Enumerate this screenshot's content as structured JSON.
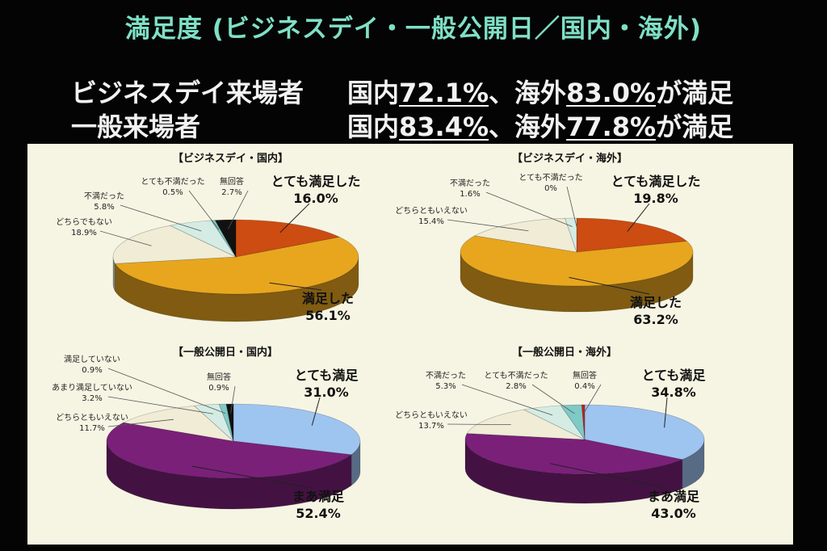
{
  "title": "満足度 (ビジネスデイ・一般公開日／国内・海外)",
  "summary": [
    {
      "label": "ビジネスデイ来場者",
      "d_prefix": "国内",
      "d_value": "72.1%",
      "sep": "、",
      "o_prefix": "海外",
      "o_value": "83.0%",
      "suffix": "が満足"
    },
    {
      "label": "一般来場者",
      "d_prefix": "国内",
      "d_value": "83.4%",
      "sep": "、",
      "o_prefix": "海外",
      "o_value": "77.8%",
      "suffix": "が満足"
    }
  ],
  "chart_data": [
    {
      "type": "pie",
      "title": "【ビジネスデイ・国内】",
      "slices": [
        {
          "label": "とても満足した",
          "value": 16.0,
          "value_label": "16.0%",
          "color": "#cc4c12",
          "emph": true
        },
        {
          "label": "満足した",
          "value": 56.1,
          "value_label": "56.1%",
          "color": "#e8a61e",
          "emph": true
        },
        {
          "label": "どちらでもない",
          "value": 18.9,
          "value_label": "18.9%",
          "color": "#f0ecd6",
          "emph": false
        },
        {
          "label": "不満だった",
          "value": 5.8,
          "value_label": "5.8%",
          "color": "#d4ece4",
          "emph": false
        },
        {
          "label": "とても不満だった",
          "value": 0.5,
          "value_label": "0.5%",
          "color": "#7fc9c6",
          "emph": false
        },
        {
          "label": "無回答",
          "value": 2.7,
          "value_label": "2.7%",
          "color": "#111111",
          "emph": false
        }
      ]
    },
    {
      "type": "pie",
      "title": "【ビジネスデイ・海外】",
      "slices": [
        {
          "label": "とても満足した",
          "value": 19.8,
          "value_label": "19.8%",
          "color": "#cc4c12",
          "emph": true
        },
        {
          "label": "満足した",
          "value": 63.2,
          "value_label": "63.2%",
          "color": "#e8a61e",
          "emph": true
        },
        {
          "label": "どちらともいえない",
          "value": 15.4,
          "value_label": "15.4%",
          "color": "#f0ecd6",
          "emph": false
        },
        {
          "label": "不満だった",
          "value": 1.6,
          "value_label": "1.6%",
          "color": "#d4ece4",
          "emph": false
        },
        {
          "label": "とても不満だった",
          "value": 0,
          "value_label": "0%",
          "color": "#7fc9c6",
          "emph": false
        }
      ]
    },
    {
      "type": "pie",
      "title": "【一般公開日・国内】",
      "slices": [
        {
          "label": "とても満足",
          "value": 31.0,
          "value_label": "31.0%",
          "color": "#9ec4f0",
          "emph": true
        },
        {
          "label": "まあ満足",
          "value": 52.4,
          "value_label": "52.4%",
          "color": "#7a2079",
          "emph": true
        },
        {
          "label": "どちらともいえない",
          "value": 11.7,
          "value_label": "11.7%",
          "color": "#f0ecd6",
          "emph": false
        },
        {
          "label": "あまり満足していない",
          "value": 3.2,
          "value_label": "3.2%",
          "color": "#d4ece4",
          "emph": false
        },
        {
          "label": "満足していない",
          "value": 0.9,
          "value_label": "0.9%",
          "color": "#7fc9c6",
          "emph": false
        },
        {
          "label": "無回答",
          "value": 0.9,
          "value_label": "0.9%",
          "color": "#111111",
          "emph": false
        }
      ]
    },
    {
      "type": "pie",
      "title": "【一般公開日・海外】",
      "slices": [
        {
          "label": "とても満足",
          "value": 34.8,
          "value_label": "34.8%",
          "color": "#9ec4f0",
          "emph": true
        },
        {
          "label": "まあ満足",
          "value": 43.0,
          "value_label": "43.0%",
          "color": "#7a2079",
          "emph": true
        },
        {
          "label": "どちらともいえない",
          "value": 13.7,
          "value_label": "13.7%",
          "color": "#f0ecd6",
          "emph": false
        },
        {
          "label": "不満だった",
          "value": 5.3,
          "value_label": "5.3%",
          "color": "#d4ece4",
          "emph": false
        },
        {
          "label": "とても不満だった",
          "value": 2.8,
          "value_label": "2.8%",
          "color": "#7fc9c6",
          "emph": false
        },
        {
          "label": "無回答",
          "value": 0.4,
          "value_label": "0.4%",
          "color": "#c02020",
          "emph": false
        }
      ]
    }
  ]
}
